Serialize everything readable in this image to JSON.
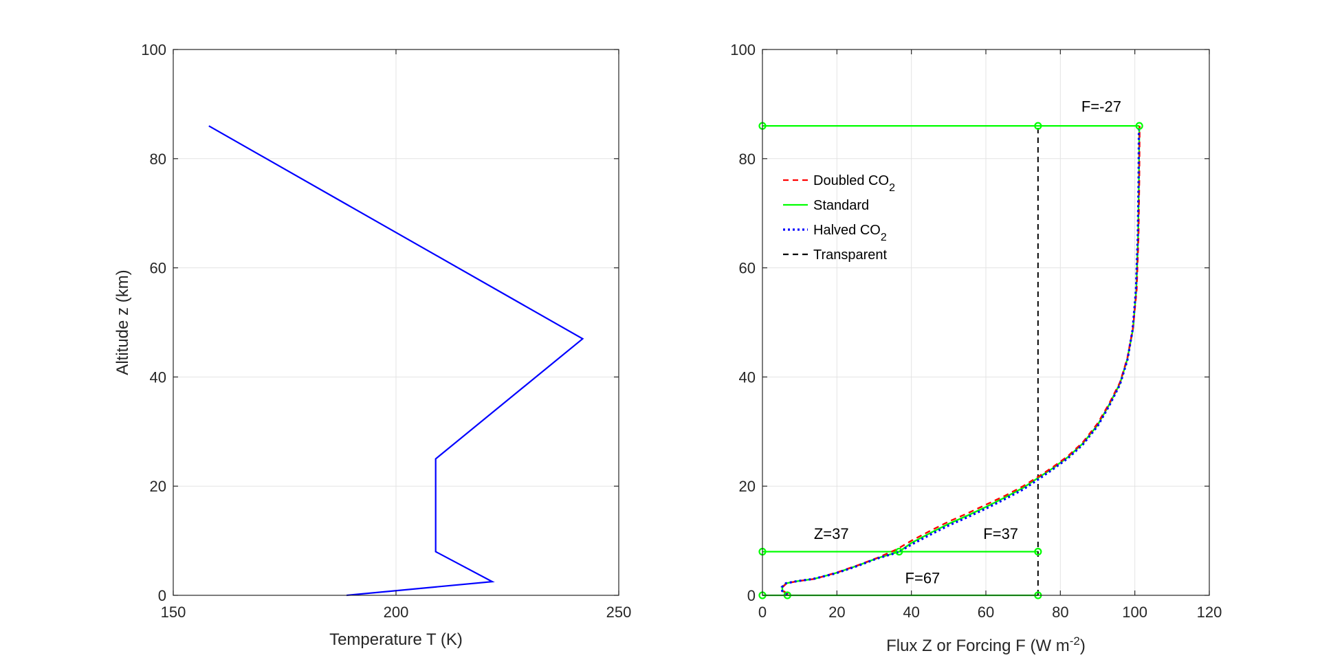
{
  "chart_data": [
    {
      "type": "line",
      "title": "",
      "xlabel": "Temperature T (K)",
      "ylabel": "Altitude z (km)",
      "xlim": [
        150,
        250
      ],
      "ylim": [
        0,
        100
      ],
      "xticks": [
        "150",
        "200",
        "250"
      ],
      "yticks": [
        "0",
        "20",
        "40",
        "60",
        "80",
        "100"
      ],
      "grid": true,
      "series": [
        {
          "color": "#0000ff",
          "x": [
            188.9,
            221.6,
            208.9,
            208.9,
            241.9,
            158.0
          ],
          "y": [
            0,
            2.5,
            8,
            25,
            47,
            86
          ]
        }
      ]
    },
    {
      "type": "line",
      "title": "",
      "xlabel": "Flux Z or Forcing F (W m",
      "xlabel_sup": "-2",
      "xlabel_end": ")",
      "ylabel": "",
      "xlim": [
        0,
        120
      ],
      "ylim": [
        0,
        100
      ],
      "xticks": [
        "0",
        "20",
        "40",
        "60",
        "80",
        "100",
        "120"
      ],
      "yticks": [
        "0",
        "20",
        "40",
        "60",
        "80",
        "100"
      ],
      "grid": true,
      "legend_position": "upper-left",
      "legend": [
        {
          "label": "Doubled CO",
          "sub": "2",
          "color": "#ff0000",
          "dash": "dashed"
        },
        {
          "label": "Standard",
          "sub": "",
          "color": "#00ff00",
          "dash": "solid"
        },
        {
          "label": "Halved CO",
          "sub": "2",
          "color": "#0000ff",
          "dash": "dotted"
        },
        {
          "label": "Transparent",
          "sub": "",
          "color": "#000000",
          "dash": "dashed"
        }
      ],
      "curves": [
        {
          "name": "Doubled CO2",
          "color": "#ff0000",
          "dash": "dashed",
          "points": [
            [
              6.9,
              0.2
            ],
            [
              5.6,
              0.8
            ],
            [
              5.4,
              1.5
            ],
            [
              6.5,
              2.2
            ],
            [
              9.5,
              2.6
            ],
            [
              14,
              3
            ],
            [
              20,
              4.2
            ],
            [
              26,
              5.6
            ],
            [
              31,
              6.9
            ],
            [
              36,
              8.4
            ],
            [
              40,
              10
            ],
            [
              45,
              11.8
            ],
            [
              50,
              13.5
            ],
            [
              55,
              15
            ],
            [
              60,
              16.6
            ],
            [
              65,
              18.2
            ],
            [
              70,
              20
            ],
            [
              74,
              21.7
            ],
            [
              78,
              23.5
            ],
            [
              82,
              25.5
            ],
            [
              86,
              28
            ],
            [
              90,
              31.5
            ],
            [
              93,
              35
            ],
            [
              96,
              39
            ],
            [
              98,
              43.5
            ],
            [
              99.5,
              49
            ],
            [
              100.5,
              56
            ],
            [
              101,
              66
            ],
            [
              101.2,
              76
            ],
            [
              101.3,
              86
            ]
          ]
        },
        {
          "name": "Standard",
          "color": "#00ff00",
          "dash": "solid",
          "points": [
            [
              6.7,
              0.2
            ],
            [
              5.4,
              0.8
            ],
            [
              5.3,
              1.5
            ],
            [
              6.4,
              2.2
            ],
            [
              9.4,
              2.6
            ],
            [
              13.8,
              3
            ],
            [
              19.8,
              4.1
            ],
            [
              25.8,
              5.5
            ],
            [
              30.8,
              6.8
            ],
            [
              36.7,
              8
            ],
            [
              40,
              9.6
            ],
            [
              45,
              11.4
            ],
            [
              50,
              13.1
            ],
            [
              55,
              14.6
            ],
            [
              60,
              16.2
            ],
            [
              65,
              17.9
            ],
            [
              70,
              19.7
            ],
            [
              74,
              21.5
            ],
            [
              78,
              23.3
            ],
            [
              82,
              25.3
            ],
            [
              86,
              27.8
            ],
            [
              90,
              31.2
            ],
            [
              93,
              34.8
            ],
            [
              96,
              38.8
            ],
            [
              98,
              43.3
            ],
            [
              99.5,
              48.8
            ],
            [
              100.4,
              56
            ],
            [
              100.9,
              66
            ],
            [
              101.1,
              76
            ],
            [
              101.2,
              86
            ]
          ]
        },
        {
          "name": "Halved CO2",
          "color": "#0000ff",
          "dash": "dotted",
          "points": [
            [
              6.6,
              0.2
            ],
            [
              5.3,
              0.8
            ],
            [
              5.2,
              1.5
            ],
            [
              6.3,
              2.2
            ],
            [
              9.3,
              2.6
            ],
            [
              13.6,
              3
            ],
            [
              19.6,
              4
            ],
            [
              25.6,
              5.4
            ],
            [
              30.6,
              6.7
            ],
            [
              36.5,
              7.9
            ],
            [
              40,
              9.3
            ],
            [
              45,
              11.1
            ],
            [
              50,
              12.8
            ],
            [
              55,
              14.3
            ],
            [
              60,
              15.9
            ],
            [
              65,
              17.6
            ],
            [
              70,
              19.4
            ],
            [
              74,
              21.2
            ],
            [
              78,
              23.1
            ],
            [
              82,
              25.1
            ],
            [
              86,
              27.6
            ],
            [
              90,
              31
            ],
            [
              93,
              34.6
            ],
            [
              96,
              38.6
            ],
            [
              98,
              43.1
            ],
            [
              99.4,
              48.6
            ],
            [
              100.3,
              56
            ],
            [
              100.8,
              66
            ],
            [
              101,
              76
            ],
            [
              101.1,
              86
            ]
          ]
        }
      ],
      "transparent_x": 74,
      "forcing_markers": [
        {
          "label": "F=-27",
          "y": 86,
          "x0": 0,
          "xmid": 74,
          "x1": 101.2,
          "label_x": 91,
          "label_y": 88.6
        },
        {
          "label": "F=37",
          "y": 8,
          "x0": 0,
          "xmid": 36.7,
          "x1": 74,
          "label_x": 64,
          "label_y": 10.3
        },
        {
          "label": "F=67",
          "y": 0,
          "x0": 0,
          "xmid": 6.7,
          "x1": 74,
          "label_x": 43,
          "label_y": 2.2
        }
      ],
      "flux_label": {
        "label": "Z=37",
        "x": 18.5,
        "y": 10.3
      }
    }
  ]
}
